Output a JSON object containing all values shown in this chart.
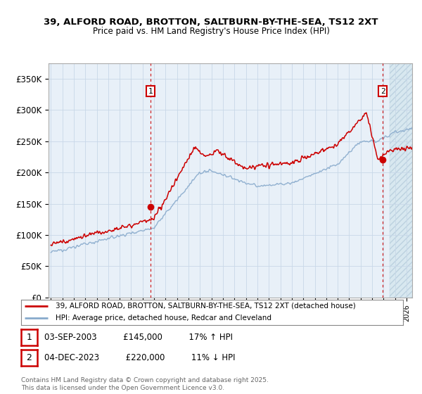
{
  "title_line1": "39, ALFORD ROAD, BROTTON, SALTBURN-BY-THE-SEA, TS12 2XT",
  "title_line2": "Price paid vs. HM Land Registry's House Price Index (HPI)",
  "ylabel_ticks": [
    "£0",
    "£50K",
    "£100K",
    "£150K",
    "£200K",
    "£250K",
    "£300K",
    "£350K"
  ],
  "ytick_values": [
    0,
    50000,
    100000,
    150000,
    200000,
    250000,
    300000,
    350000
  ],
  "ylim": [
    0,
    375000
  ],
  "xlim_start": 1994.8,
  "xlim_end": 2026.5,
  "transaction1_date": 2003.67,
  "transaction1_price": 145000,
  "transaction1_label": "1",
  "transaction1_text": "03-SEP-2003          £145,000          17% ↑ HPI",
  "transaction2_date": 2023.92,
  "transaction2_price": 220000,
  "transaction2_label": "2",
  "transaction2_text": "04-DEC-2023          £220,000          11% ↓ HPI",
  "legend_line1": "39, ALFORD ROAD, BROTTON, SALTBURN-BY-THE-SEA, TS12 2XT (detached house)",
  "legend_line2": "HPI: Average price, detached house, Redcar and Cleveland",
  "footer_line1": "Contains HM Land Registry data © Crown copyright and database right 2025.",
  "footer_line2": "This data is licensed under the Open Government Licence v3.0.",
  "red_color": "#cc0000",
  "blue_color": "#88aacc",
  "plot_bg": "#e8f0f8",
  "grid_color": "#c8d8e8",
  "dashed_line_color": "#cc0000",
  "hatch_bg": "#d8e8f0"
}
